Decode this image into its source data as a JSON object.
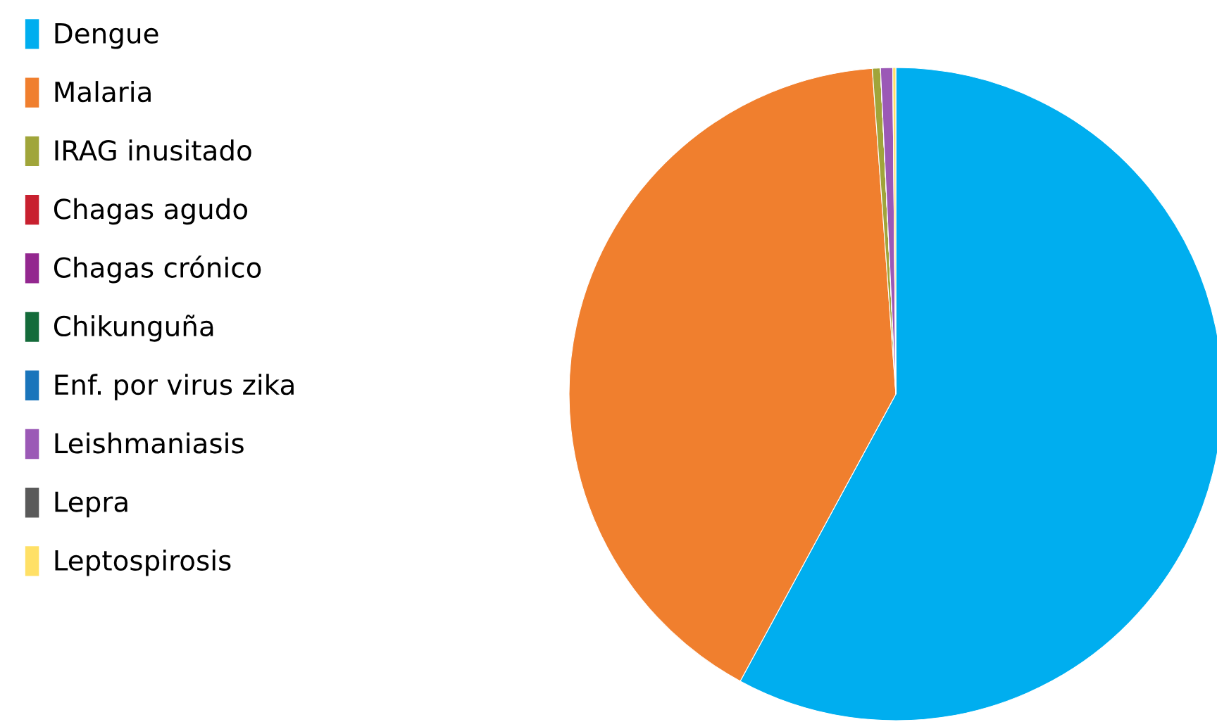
{
  "chart_data": {
    "type": "pie",
    "categories": [
      "Dengue",
      "Malaria",
      "IRAG inusitado",
      "Chagas agudo",
      "Chagas crónico",
      "Chikunguña",
      "Enf. por virus zika",
      "Leishmaniasis",
      "Lepra",
      "Leptospirosis"
    ],
    "values": [
      57.9,
      40.95,
      0.4,
      0,
      0,
      0,
      0,
      0.6,
      0,
      0.15
    ],
    "colors": [
      "#00aeef",
      "#f07f2e",
      "#a0a53a",
      "#c8202f",
      "#93278f",
      "#146b3a",
      "#1a75bb",
      "#9b59b6",
      "#5a5a5a",
      "#ffe066"
    ],
    "legend": "left"
  }
}
